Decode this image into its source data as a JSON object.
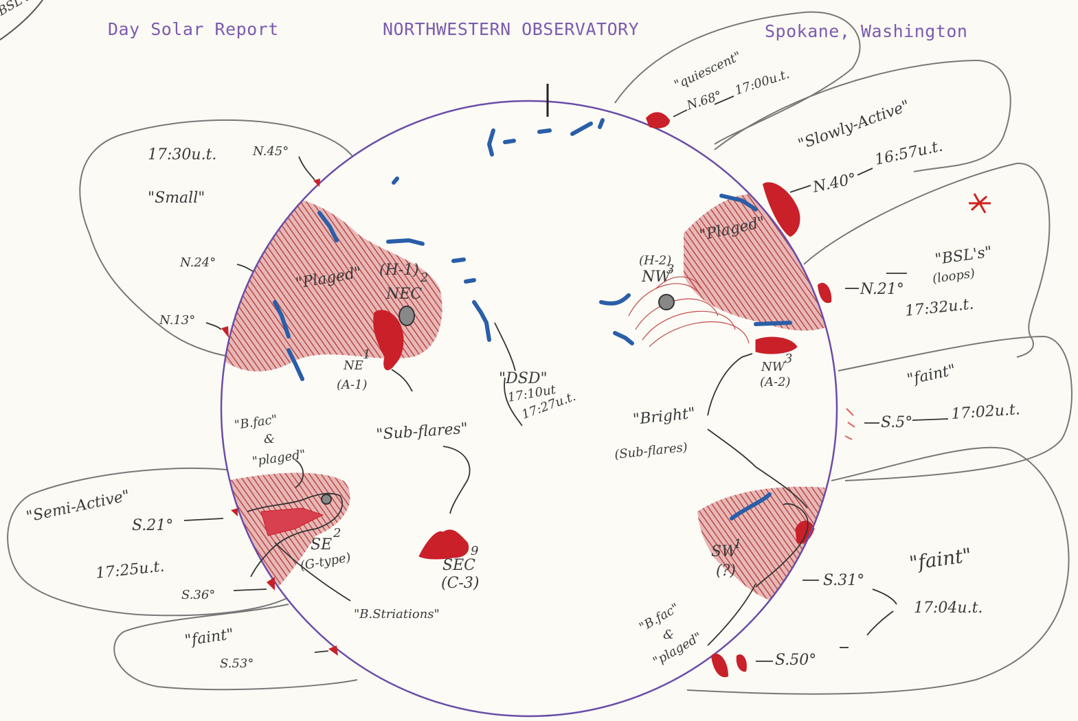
{
  "header": {
    "report": "Day Solar Report",
    "observatory": "NORTHWESTERN OBSERVATORY",
    "location": "Spokane, Washington",
    "margin_note": "BSL's"
  },
  "colors": {
    "disk_outline": "#6a4ca8",
    "plage": "#b83a3a",
    "filament": "#2a5ea8",
    "ink": "#3a3a3a",
    "typed": "#7c5ab0"
  },
  "limb_prominences": {
    "upper_left": {
      "time": "17:30u.t.",
      "quality": "\"Small\"",
      "lats": [
        "N.45°",
        "N.24°",
        "N.13°"
      ]
    },
    "top": {
      "quality": "\"quiescent\"",
      "lat": "N.68°",
      "time": "17:00u.t."
    },
    "upper_right": {
      "quality": "\"Slowly-Active\"",
      "lat": "N.40°",
      "time": "16:57u.t."
    },
    "right": {
      "lat": "N.21°",
      "quality": "\"BSL's\"",
      "note": "(loops)",
      "time": "17:32u.t."
    },
    "right_middle": {
      "quality": "\"faint\"",
      "lat": "S.5°",
      "time": "17:02u.t."
    },
    "lower_right": {
      "lat1": "S.31°",
      "quality": "\"faint\"",
      "time": "17:04u.t.",
      "lat2": "S.50°"
    },
    "lower_left": {
      "quality": "\"Semi-Active\"",
      "lat1": "S.21°",
      "time": "17:25u.t.",
      "lat2": "S.36°"
    },
    "bottom_left": {
      "quality": "\"faint\"",
      "lat": "S.53°"
    }
  },
  "disk_labels": {
    "plaged_left": "\"Plaged\"",
    "h1": "(H-1)",
    "nec": "NEC",
    "nec_num": "2",
    "ne": "NE",
    "ne_num": "1",
    "a1": "(A-1)",
    "subflares": "\"Sub-flares\"",
    "dsd": "\"DSD\"",
    "dsd_time1": "17:10ut",
    "dsd_time2": "17:27u.t.",
    "h2": "(H-2)",
    "nw": "NW",
    "nw_num": "3",
    "plaged_right": "\"Plaged\"",
    "nw_lower": "NW",
    "nw_lower_num": "3",
    "a2": "(A-2)",
    "bright": "\"Bright\"",
    "bright_sub": "(Sub-flares)",
    "bfac_left": "\"B.fac\"",
    "bfac_left_and": "&",
    "bfac_left_plaged": "\"plaged\"",
    "se": "SE",
    "se_num": "2",
    "se_type": "(G-type)",
    "b_striations": "\"B.Striations\"",
    "sec": "SEC",
    "sec_num": "9",
    "sec_type": "(C-3)",
    "sw": "SW",
    "sw_num": "1",
    "sw_q": "(?)",
    "bfac_right": "\"B.fac\"",
    "bfac_right_and": "&",
    "bfac_right_plaged": "\"plaged\""
  }
}
